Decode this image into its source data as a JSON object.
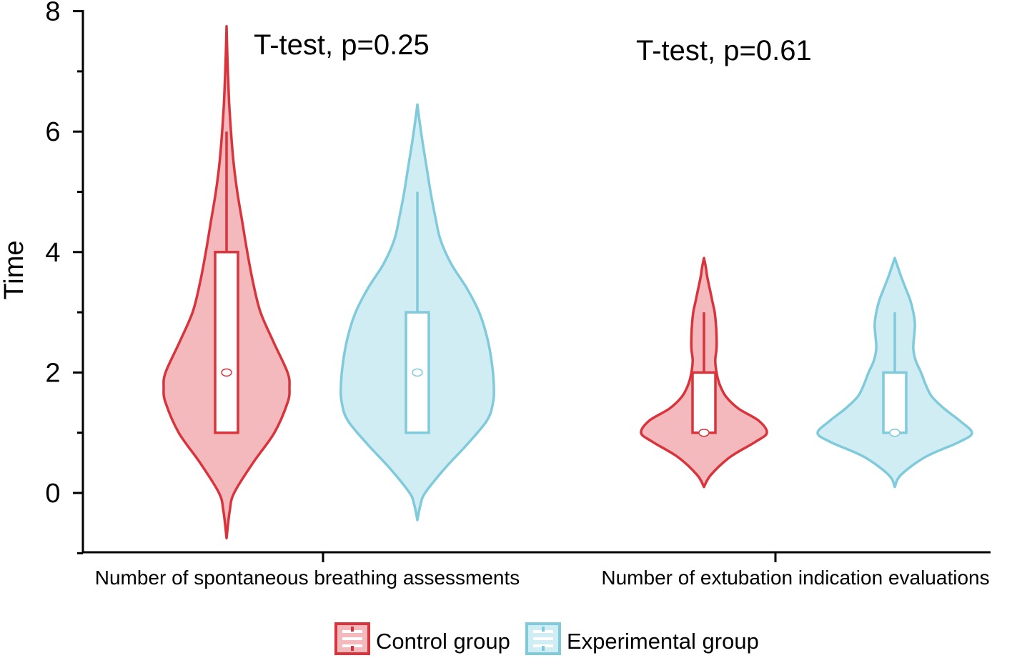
{
  "chart_data": {
    "type": "violin",
    "ylabel": "Time",
    "ylim": [
      -1,
      8
    ],
    "yticks": [
      0,
      2,
      4,
      6,
      8
    ],
    "categories": [
      "Number of spontaneous breathing assessments",
      "Number of extubation indication evaluations"
    ],
    "annotations": [
      "T-test, p=0.25",
      "T-test, p=0.61"
    ],
    "series": [
      {
        "name": "Control group",
        "color": "#d9343b",
        "fill": "#f4b9bc",
        "groups": [
          {
            "range": [
              -0.75,
              7.75
            ],
            "box": {
              "q1": 1,
              "median": 2,
              "q3": 4,
              "whisker_low": 1,
              "whisker_high": 6
            },
            "density": [
              [
                -0.75,
                0.0
              ],
              [
                -0.3,
                0.05
              ],
              [
                0.0,
                0.12
              ],
              [
                0.5,
                0.42
              ],
              [
                1.0,
                0.76
              ],
              [
                1.5,
                0.97
              ],
              [
                1.75,
                1.0
              ],
              [
                2.0,
                0.97
              ],
              [
                2.5,
                0.75
              ],
              [
                3.0,
                0.54
              ],
              [
                3.5,
                0.42
              ],
              [
                4.0,
                0.33
              ],
              [
                4.5,
                0.25
              ],
              [
                5.0,
                0.17
              ],
              [
                5.5,
                0.11
              ],
              [
                6.0,
                0.07
              ],
              [
                6.5,
                0.04
              ],
              [
                7.0,
                0.02
              ],
              [
                7.5,
                0.006
              ],
              [
                7.75,
                0.0
              ]
            ]
          },
          {
            "range": [
              0.1,
              3.9
            ],
            "box": {
              "q1": 1,
              "median": 1,
              "q3": 2,
              "whisker_low": 1,
              "whisker_high": 3
            },
            "density": [
              [
                0.1,
                0.0
              ],
              [
                0.3,
                0.11
              ],
              [
                0.6,
                0.42
              ],
              [
                0.85,
                0.82
              ],
              [
                1.0,
                1.0
              ],
              [
                1.2,
                0.87
              ],
              [
                1.4,
                0.55
              ],
              [
                1.6,
                0.35
              ],
              [
                1.8,
                0.25
              ],
              [
                2.0,
                0.2
              ],
              [
                2.2,
                0.18
              ],
              [
                2.4,
                0.2
              ],
              [
                2.6,
                0.2
              ],
              [
                2.8,
                0.19
              ],
              [
                3.0,
                0.17
              ],
              [
                3.2,
                0.13
              ],
              [
                3.4,
                0.09
              ],
              [
                3.6,
                0.05
              ],
              [
                3.75,
                0.03
              ],
              [
                3.9,
                0.0
              ]
            ]
          }
        ]
      },
      {
        "name": "Experimental group",
        "color": "#7fcadb",
        "fill": "#d1edf4",
        "groups": [
          {
            "range": [
              -0.45,
              6.45
            ],
            "box": {
              "q1": 1,
              "median": 2,
              "q3": 3,
              "whisker_low": 1,
              "whisker_high": 5
            },
            "density": [
              [
                -0.45,
                0.0
              ],
              [
                -0.2,
                0.04
              ],
              [
                0.0,
                0.1
              ],
              [
                0.4,
                0.35
              ],
              [
                0.8,
                0.64
              ],
              [
                1.2,
                0.9
              ],
              [
                1.5,
                0.98
              ],
              [
                1.8,
                0.99
              ],
              [
                2.2,
                0.96
              ],
              [
                2.6,
                0.9
              ],
              [
                3.0,
                0.8
              ],
              [
                3.4,
                0.64
              ],
              [
                3.8,
                0.44
              ],
              [
                4.2,
                0.3
              ],
              [
                4.6,
                0.23
              ],
              [
                5.0,
                0.17
              ],
              [
                5.4,
                0.12
              ],
              [
                5.8,
                0.07
              ],
              [
                6.2,
                0.025
              ],
              [
                6.45,
                0.0
              ]
            ]
          },
          {
            "range": [
              0.1,
              3.9
            ],
            "box": {
              "q1": 1,
              "median": 1,
              "q3": 2,
              "whisker_low": 1,
              "whisker_high": 3
            },
            "density": [
              [
                0.1,
                0.0
              ],
              [
                0.3,
                0.08
              ],
              [
                0.6,
                0.4
              ],
              [
                0.85,
                0.84
              ],
              [
                1.0,
                1.0
              ],
              [
                1.2,
                0.84
              ],
              [
                1.4,
                0.64
              ],
              [
                1.6,
                0.48
              ],
              [
                1.8,
                0.4
              ],
              [
                2.0,
                0.34
              ],
              [
                2.2,
                0.27
              ],
              [
                2.4,
                0.24
              ],
              [
                2.6,
                0.25
              ],
              [
                2.8,
                0.26
              ],
              [
                3.0,
                0.24
              ],
              [
                3.2,
                0.2
              ],
              [
                3.4,
                0.14
              ],
              [
                3.6,
                0.08
              ],
              [
                3.75,
                0.04
              ],
              [
                3.9,
                0.0
              ]
            ]
          }
        ]
      }
    ],
    "legend": {
      "position": "bottom-center"
    }
  }
}
